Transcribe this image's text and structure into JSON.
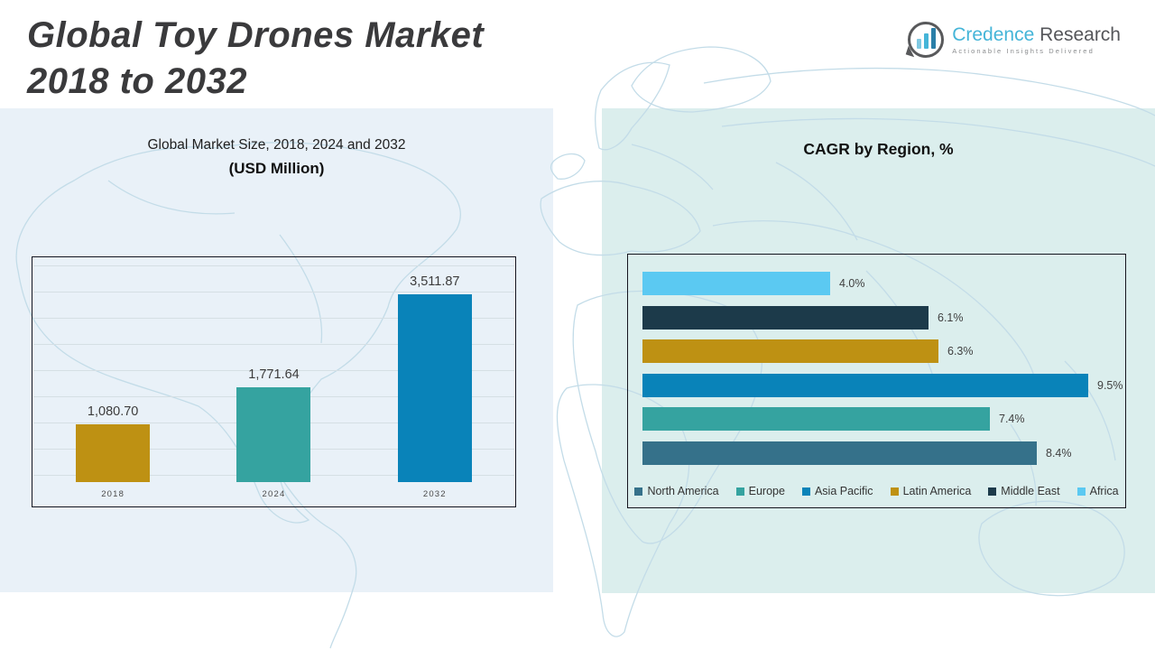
{
  "page": {
    "title_line1": "Global Toy Drones Market",
    "title_line2": "2018 to 2032"
  },
  "logo": {
    "brand_primary": "Credence",
    "brand_secondary": " Research",
    "tagline": "Actionable Insights Delivered",
    "icon": "bar-chart-speech-bubble-icon"
  },
  "colors": {
    "left_panel_bg": "#e9f1f8",
    "right_panel_bg": "#dbeeed",
    "chart_border": "#15151f",
    "gridline": "#d5dfe4",
    "map_outline": "#c3dce8",
    "gold": "#be9113",
    "teal": "#35a3a0",
    "blue": "#0983b9",
    "slate_blue": "#35718a",
    "dark_navy": "#1c3a4a",
    "sky_blue": "#5bc9f2",
    "title_text": "#3a3a3c",
    "logo_blue": "#45b5d8",
    "logo_gray": "#55565a"
  },
  "chart_data": [
    {
      "type": "bar",
      "title": "Global Market Size, 2018, 2024 and 2032",
      "subtitle": "(USD Million)",
      "xlabel": "",
      "ylabel": "",
      "categories": [
        "2018",
        "2024",
        "2032"
      ],
      "values": [
        1080.7,
        1771.64,
        3511.87
      ],
      "value_labels": [
        "1,080.70",
        "1,771.64",
        "3,511.87"
      ],
      "bar_colors": [
        "#be9113",
        "#35a3a0",
        "#0983b9"
      ],
      "ylim": [
        0,
        3700
      ],
      "grid": true,
      "legend_position": "none"
    },
    {
      "type": "bar-horizontal",
      "title": "CAGR by Region, %",
      "xlim": [
        0,
        10.3
      ],
      "grid": false,
      "rows": [
        {
          "region": "Africa",
          "value": 4.0,
          "label": "4.0%",
          "color": "#5bc9f2"
        },
        {
          "region": "Middle East",
          "value": 6.1,
          "label": "6.1%",
          "color": "#1c3a4a"
        },
        {
          "region": "Latin America",
          "value": 6.3,
          "label": "6.3%",
          "color": "#be9113"
        },
        {
          "region": "Asia Pacific",
          "value": 9.5,
          "label": "9.5%",
          "color": "#0983b9"
        },
        {
          "region": "Europe",
          "value": 7.4,
          "label": "7.4%",
          "color": "#35a3a0"
        },
        {
          "region": "North America",
          "value": 8.4,
          "label": "8.4%",
          "color": "#35718a"
        }
      ],
      "legend_position": "bottom",
      "legend": [
        {
          "label": "North America",
          "color": "#35718a"
        },
        {
          "label": "Europe",
          "color": "#35a3a0"
        },
        {
          "label": "Asia Pacific",
          "color": "#0983b9"
        },
        {
          "label": "Latin America",
          "color": "#be9113"
        },
        {
          "label": "Middle East",
          "color": "#1c3a4a"
        },
        {
          "label": "Africa",
          "color": "#5bc9f2"
        }
      ]
    }
  ]
}
